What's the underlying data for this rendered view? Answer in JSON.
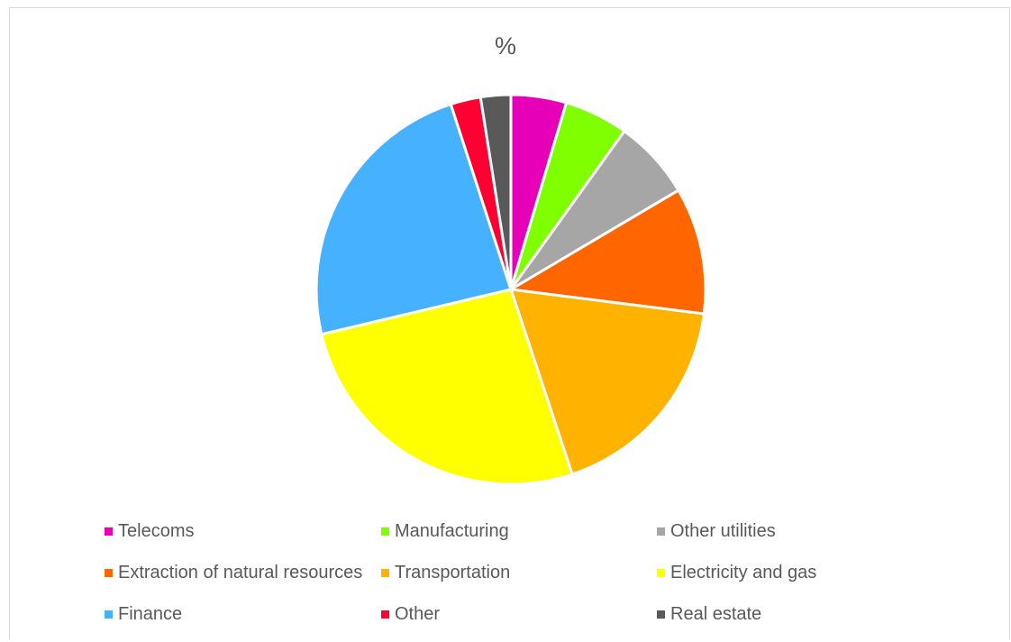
{
  "chart_data": {
    "type": "pie",
    "title": "%",
    "legend_position": "bottom",
    "categories": [
      "Telecoms",
      "Manufacturing",
      "Other utilities",
      "Extraction of natural resources",
      "Transportation",
      "Electricity and gas",
      "Finance",
      "Other",
      "Real estate"
    ],
    "values": [
      4.6,
      5.3,
      6.6,
      10.5,
      17.9,
      26.4,
      23.7,
      2.5,
      2.5
    ],
    "colors": [
      "#e600b8",
      "#7fff00",
      "#a6a6a6",
      "#ff6600",
      "#ffb300",
      "#ffff00",
      "#46b1ff",
      "#ff0033",
      "#595959"
    ]
  }
}
